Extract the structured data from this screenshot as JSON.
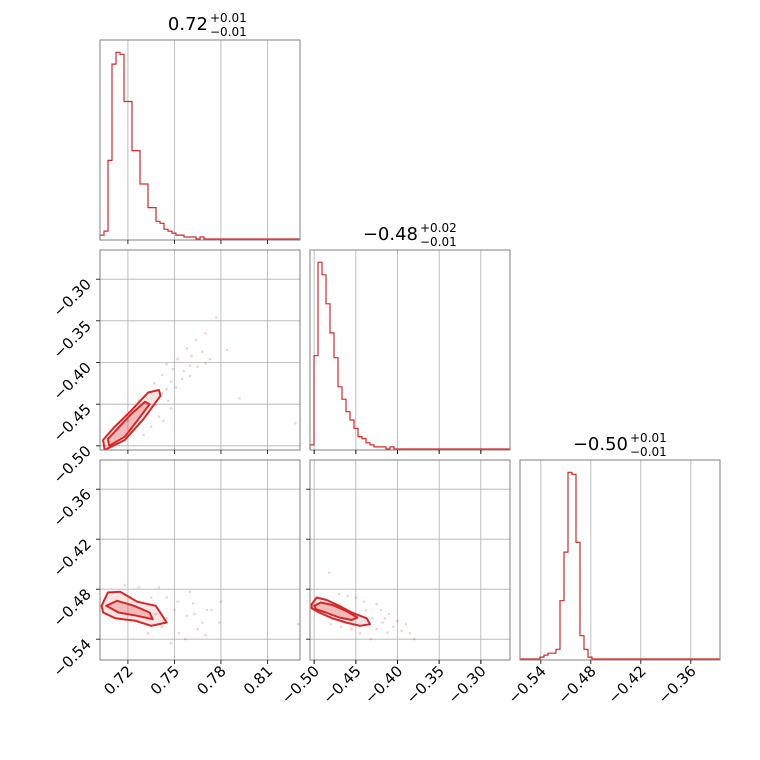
{
  "colors": {
    "accent": "#d62728",
    "frame": "#808080",
    "grid": "#b0b0b0"
  },
  "chart_data": {
    "type": "corner",
    "grid": true,
    "parameters": [
      {
        "range": [
          0.702,
          0.831
        ],
        "ticks": [
          0.72,
          0.75,
          0.78,
          0.81
        ],
        "tick_labels": [
          "0.72",
          "0.75",
          "0.78",
          "0.81"
        ],
        "title": {
          "median": "0.72",
          "plus": "+0.01",
          "minus": "−0.01"
        }
      },
      {
        "range": [
          -0.505,
          -0.265
        ],
        "ticks": [
          -0.5,
          -0.45,
          -0.4,
          -0.35,
          -0.3
        ],
        "tick_labels": [
          "−0.50",
          "−0.45",
          "−0.40",
          "−0.35",
          "−0.30"
        ],
        "y_ticks_labels": [
          "−0.30",
          "−0.35",
          "−0.40",
          "−0.45",
          "−0.50"
        ],
        "title": {
          "median": "−0.48",
          "plus": "+0.02",
          "minus": "−0.01"
        }
      },
      {
        "range": [
          -0.565,
          -0.325
        ],
        "ticks": [
          -0.54,
          -0.48,
          -0.42,
          -0.36
        ],
        "tick_labels": [
          "−0.54",
          "−0.48",
          "−0.42",
          "−0.36"
        ],
        "y_ticks_labels": [
          "−0.36",
          "−0.42",
          "−0.48",
          "−0.54"
        ],
        "title": {
          "median": "−0.50",
          "plus": "+0.01",
          "minus": "−0.01"
        }
      }
    ],
    "histograms": [
      {
        "param": 0,
        "bin_start": 0.702,
        "bin_width": 0.00258,
        "counts": [
          2,
          4,
          40,
          89,
          95,
          94,
          70,
          70,
          45,
          45,
          28,
          28,
          16,
          16,
          9,
          8,
          5,
          4,
          3,
          2,
          2,
          1,
          1,
          1,
          0,
          1,
          0,
          0,
          0,
          0,
          0,
          0,
          0,
          0,
          0,
          0,
          0,
          0,
          0,
          0,
          0,
          0,
          0,
          0,
          0,
          0,
          0,
          0,
          0,
          0
        ]
      },
      {
        "param": 1,
        "bin_start": -0.505,
        "bin_width": 0.0048,
        "counts": [
          2,
          45,
          90,
          84,
          70,
          56,
          44,
          30,
          24,
          18,
          14,
          10,
          6,
          5,
          3,
          2,
          1,
          1,
          1,
          0,
          1,
          0,
          0,
          0,
          0,
          0,
          0,
          0,
          0,
          0,
          0,
          0,
          0,
          0,
          0,
          0,
          0,
          0,
          0,
          0,
          0,
          0,
          0,
          0,
          0,
          0,
          0,
          0,
          0,
          0
        ]
      },
      {
        "param": 2,
        "bin_start": -0.565,
        "bin_width": 0.0048,
        "counts": [
          0,
          0,
          0,
          0,
          0,
          1,
          2,
          3,
          3,
          5,
          30,
          55,
          96,
          95,
          60,
          12,
          5,
          1,
          0,
          0,
          0,
          0,
          0,
          0,
          0,
          0,
          0,
          0,
          0,
          0,
          0,
          0,
          0,
          0,
          0,
          0,
          0,
          0,
          0,
          0,
          0,
          0,
          0,
          0,
          0,
          0,
          0,
          0,
          0,
          0
        ]
      }
    ],
    "pairs": [
      {
        "x_param": 0,
        "y_param": 1,
        "contours": [
          {
            "level": "outer",
            "points": [
              [
                0.705,
                -0.505
              ],
              [
                0.718,
                -0.493
              ],
              [
                0.73,
                -0.468
              ],
              [
                0.741,
                -0.44
              ],
              [
                0.74,
                -0.433
              ],
              [
                0.733,
                -0.436
              ],
              [
                0.722,
                -0.458
              ],
              [
                0.711,
                -0.478
              ],
              [
                0.704,
                -0.493
              ]
            ]
          },
          {
            "level": "inner",
            "points": [
              [
                0.708,
                -0.5
              ],
              [
                0.718,
                -0.489
              ],
              [
                0.726,
                -0.47
              ],
              [
                0.734,
                -0.45
              ],
              [
                0.731,
                -0.447
              ],
              [
                0.722,
                -0.462
              ],
              [
                0.713,
                -0.48
              ],
              [
                0.707,
                -0.492
              ]
            ]
          }
        ],
        "scatter": [
          [
            0.737,
            -0.425
          ],
          [
            0.742,
            -0.415
          ],
          [
            0.745,
            -0.432
          ],
          [
            0.749,
            -0.408
          ],
          [
            0.752,
            -0.396
          ],
          [
            0.755,
            -0.42
          ],
          [
            0.745,
            -0.402
          ],
          [
            0.742,
            -0.437
          ],
          [
            0.76,
            -0.404
          ],
          [
            0.758,
            -0.383
          ],
          [
            0.764,
            -0.373
          ],
          [
            0.768,
            -0.387
          ],
          [
            0.761,
            -0.392
          ],
          [
            0.733,
            -0.462
          ],
          [
            0.738,
            -0.451
          ],
          [
            0.735,
            -0.477
          ],
          [
            0.746,
            -0.446
          ],
          [
            0.73,
            -0.487
          ],
          [
            0.74,
            -0.465
          ],
          [
            0.751,
            -0.43
          ],
          [
            0.756,
            -0.41
          ],
          [
            0.77,
            -0.365
          ],
          [
            0.773,
            -0.396
          ],
          [
            0.777,
            -0.346
          ],
          [
            0.765,
            -0.405
          ],
          [
            0.784,
            -0.385
          ],
          [
            0.748,
            -0.455
          ],
          [
            0.743,
            -0.47
          ],
          [
            0.727,
            -0.445
          ],
          [
            0.723,
            -0.48
          ],
          [
            0.72,
            -0.47
          ],
          [
            0.735,
            -0.455
          ],
          [
            0.748,
            -0.423
          ],
          [
            0.76,
            -0.416
          ],
          [
            0.77,
            -0.401
          ],
          [
            0.828,
            -0.473
          ],
          [
            0.792,
            -0.443
          ]
        ]
      },
      {
        "x_param": 0,
        "y_param": 2,
        "contours": [
          {
            "level": "outer",
            "points": [
              [
                0.703,
                -0.5
              ],
              [
                0.707,
                -0.484
              ],
              [
                0.715,
                -0.483
              ],
              [
                0.726,
                -0.495
              ],
              [
                0.738,
                -0.5
              ],
              [
                0.745,
                -0.52
              ],
              [
                0.735,
                -0.524
              ],
              [
                0.725,
                -0.518
              ],
              [
                0.712,
                -0.515
              ],
              [
                0.704,
                -0.508
              ]
            ]
          },
          {
            "level": "inner",
            "points": [
              [
                0.706,
                -0.5
              ],
              [
                0.713,
                -0.494
              ],
              [
                0.724,
                -0.5
              ],
              [
                0.734,
                -0.508
              ],
              [
                0.736,
                -0.516
              ],
              [
                0.726,
                -0.512
              ],
              [
                0.714,
                -0.508
              ]
            ]
          }
        ],
        "scatter": [
          [
            0.745,
            -0.49
          ],
          [
            0.75,
            -0.505
          ],
          [
            0.758,
            -0.512
          ],
          [
            0.762,
            -0.497
          ],
          [
            0.768,
            -0.52
          ],
          [
            0.774,
            -0.505
          ],
          [
            0.742,
            -0.525
          ],
          [
            0.753,
            -0.533
          ],
          [
            0.733,
            -0.533
          ],
          [
            0.748,
            -0.545
          ],
          [
            0.765,
            -0.528
          ],
          [
            0.771,
            -0.505
          ],
          [
            0.78,
            -0.495
          ],
          [
            0.76,
            -0.483
          ],
          [
            0.74,
            -0.478
          ],
          [
            0.727,
            -0.478
          ],
          [
            0.718,
            -0.475
          ],
          [
            0.735,
            -0.49
          ],
          [
            0.757,
            -0.54
          ],
          [
            0.779,
            -0.52
          ],
          [
            0.745,
            -0.515
          ],
          [
            0.752,
            -0.495
          ],
          [
            0.738,
            -0.51
          ],
          [
            0.83,
            -0.522
          ],
          [
            0.77,
            -0.535
          ],
          [
            0.763,
            -0.51
          ]
        ]
      },
      {
        "x_param": 1,
        "y_param": 2,
        "contours": [
          {
            "level": "outer",
            "points": [
              [
                -0.503,
                -0.498
              ],
              [
                -0.497,
                -0.49
              ],
              [
                -0.485,
                -0.493
              ],
              [
                -0.47,
                -0.5
              ],
              [
                -0.455,
                -0.508
              ],
              [
                -0.437,
                -0.515
              ],
              [
                -0.433,
                -0.522
              ],
              [
                -0.445,
                -0.524
              ],
              [
                -0.462,
                -0.52
              ],
              [
                -0.478,
                -0.515
              ],
              [
                -0.494,
                -0.508
              ],
              [
                -0.503,
                -0.503
              ]
            ]
          },
          {
            "level": "inner",
            "points": [
              [
                -0.5,
                -0.5
              ],
              [
                -0.492,
                -0.496
              ],
              [
                -0.478,
                -0.499
              ],
              [
                -0.462,
                -0.506
              ],
              [
                -0.448,
                -0.514
              ],
              [
                -0.455,
                -0.517
              ],
              [
                -0.47,
                -0.514
              ],
              [
                -0.486,
                -0.508
              ],
              [
                -0.498,
                -0.504
              ]
            ]
          }
        ],
        "scatter": [
          [
            -0.43,
            -0.515
          ],
          [
            -0.425,
            -0.528
          ],
          [
            -0.418,
            -0.52
          ],
          [
            -0.412,
            -0.532
          ],
          [
            -0.405,
            -0.525
          ],
          [
            -0.44,
            -0.495
          ],
          [
            -0.45,
            -0.49
          ],
          [
            -0.46,
            -0.488
          ],
          [
            -0.47,
            -0.486
          ],
          [
            -0.42,
            -0.505
          ],
          [
            -0.41,
            -0.51
          ],
          [
            -0.4,
            -0.518
          ],
          [
            -0.395,
            -0.53
          ],
          [
            -0.385,
            -0.533
          ],
          [
            -0.432,
            -0.54
          ],
          [
            -0.445,
            -0.533
          ],
          [
            -0.455,
            -0.528
          ],
          [
            -0.468,
            -0.525
          ],
          [
            -0.48,
            -0.522
          ],
          [
            -0.425,
            -0.498
          ],
          [
            -0.438,
            -0.505
          ],
          [
            -0.415,
            -0.515
          ],
          [
            -0.39,
            -0.522
          ],
          [
            -0.482,
            -0.46
          ],
          [
            -0.38,
            -0.54
          ]
        ]
      }
    ]
  }
}
